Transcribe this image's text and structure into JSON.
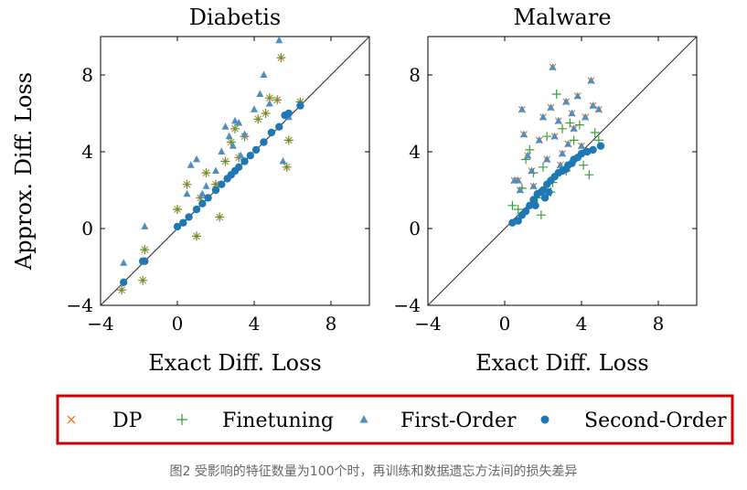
{
  "caption": "图2 受影响的特征数量为100个时，再训练和数据遗忘方法间的损失差异",
  "colors": {
    "dp": "#e8772e",
    "finetuning": "#3aa03a",
    "first_order": "#4f8fc0",
    "second_order": "#1f78b4",
    "frame": "#000000",
    "diagonal": "#333333",
    "legend_border": "#cc0000"
  },
  "legend": [
    {
      "key": "dp",
      "label": "DP",
      "marker": "x-mark"
    },
    {
      "key": "finetuning",
      "label": "Finetuning",
      "marker": "plus-mark"
    },
    {
      "key": "first_order",
      "label": "First-Order",
      "marker": "triangle-mark"
    },
    {
      "key": "second_order",
      "label": "Second-Order",
      "marker": "dot-mark"
    }
  ],
  "chart_data": [
    {
      "type": "scatter",
      "title": "Diabetis",
      "xlabel": "Exact Diff. Loss",
      "ylabel": "Approx. Diff. Loss",
      "xlim": [
        -4,
        10
      ],
      "ylim": [
        -4,
        10
      ],
      "xticks": [
        -4,
        0,
        4,
        8
      ],
      "yticks": [
        -4,
        0,
        4,
        8
      ],
      "xtick_labels": [
        "−4",
        "0",
        "4",
        "8"
      ],
      "ytick_labels": [
        "−4",
        "0",
        "4",
        "8"
      ],
      "diagonal": true,
      "series": [
        {
          "name": "DP",
          "key": "dp",
          "points": [
            [
              -2.9,
              -3.2
            ],
            [
              -1.8,
              -2.7
            ],
            [
              -1.7,
              -1.1
            ],
            [
              0,
              1.0
            ],
            [
              0.5,
              2.3
            ],
            [
              1.0,
              -0.4
            ],
            [
              1.2,
              1.6
            ],
            [
              1.5,
              2.9
            ],
            [
              2.0,
              2.3
            ],
            [
              2.2,
              0.6
            ],
            [
              2.5,
              3.5
            ],
            [
              2.8,
              4.5
            ],
            [
              3.0,
              5.2
            ],
            [
              3.2,
              3.7
            ],
            [
              3.5,
              4.8
            ],
            [
              4.2,
              5.7
            ],
            [
              4.6,
              6.0
            ],
            [
              4.8,
              6.8
            ],
            [
              5.2,
              6.7
            ],
            [
              5.4,
              8.9
            ],
            [
              5.8,
              4.6
            ],
            [
              5.7,
              3.2
            ],
            [
              6.4,
              6.6
            ]
          ]
        },
        {
          "name": "Finetuning",
          "key": "finetuning",
          "points": [
            [
              -2.9,
              -3.2
            ],
            [
              -1.8,
              -2.7
            ],
            [
              -1.7,
              -1.1
            ],
            [
              0,
              1.0
            ],
            [
              0.5,
              2.3
            ],
            [
              1.0,
              -0.4
            ],
            [
              1.2,
              1.6
            ],
            [
              1.5,
              2.9
            ],
            [
              2.0,
              2.3
            ],
            [
              2.2,
              0.6
            ],
            [
              2.5,
              3.5
            ],
            [
              2.8,
              4.5
            ],
            [
              3.0,
              5.2
            ],
            [
              3.2,
              3.7
            ],
            [
              3.5,
              4.8
            ],
            [
              4.2,
              5.7
            ],
            [
              4.6,
              6.0
            ],
            [
              4.8,
              6.8
            ],
            [
              5.2,
              6.7
            ],
            [
              5.4,
              8.9
            ],
            [
              5.8,
              4.6
            ],
            [
              5.7,
              3.2
            ],
            [
              6.4,
              6.6
            ]
          ]
        },
        {
          "name": "First-Order",
          "key": "first_order",
          "points": [
            [
              -2.8,
              -1.8
            ],
            [
              -1.7,
              0.1
            ],
            [
              0.5,
              1.8
            ],
            [
              0.7,
              3.3
            ],
            [
              1.0,
              3.6
            ],
            [
              1.5,
              2.2
            ],
            [
              2.0,
              3.0
            ],
            [
              2.3,
              4.0
            ],
            [
              2.5,
              5.3
            ],
            [
              2.7,
              4.8
            ],
            [
              3.0,
              5.6
            ],
            [
              3.2,
              5.5
            ],
            [
              3.5,
              4.9
            ],
            [
              4.0,
              6.2
            ],
            [
              4.3,
              7.0
            ],
            [
              4.5,
              8.0
            ],
            [
              4.8,
              6.5
            ],
            [
              5.3,
              9.8
            ],
            [
              5.5,
              3.5
            ],
            [
              5.8,
              5.8
            ],
            [
              3.3,
              3.8
            ],
            [
              2.9,
              4.3
            ],
            [
              1.3,
              1.8
            ]
          ]
        },
        {
          "name": "Second-Order",
          "key": "second_order",
          "points": [
            [
              -2.8,
              -2.8
            ],
            [
              -1.8,
              -1.7
            ],
            [
              -1.7,
              -1.7
            ],
            [
              0,
              0.1
            ],
            [
              0.3,
              0.3
            ],
            [
              0.6,
              0.6
            ],
            [
              1.0,
              1.0
            ],
            [
              1.3,
              1.3
            ],
            [
              1.6,
              1.6
            ],
            [
              2.0,
              2.0
            ],
            [
              2.3,
              2.3
            ],
            [
              2.6,
              2.6
            ],
            [
              2.8,
              2.8
            ],
            [
              3.0,
              3.0
            ],
            [
              3.2,
              3.2
            ],
            [
              3.5,
              3.5
            ],
            [
              3.8,
              3.8
            ],
            [
              4.1,
              4.1
            ],
            [
              4.5,
              4.5
            ],
            [
              4.9,
              5.0
            ],
            [
              5.3,
              5.3
            ],
            [
              5.6,
              5.9
            ],
            [
              5.8,
              6.0
            ],
            [
              6.4,
              6.4
            ]
          ]
        }
      ]
    },
    {
      "type": "scatter",
      "title": "Malware",
      "xlabel": "Exact Diff. Loss",
      "ylabel": "",
      "xlim": [
        -4,
        10
      ],
      "ylim": [
        -4,
        10
      ],
      "xticks": [
        -4,
        0,
        4,
        8
      ],
      "yticks": [
        -4,
        0,
        4,
        8
      ],
      "xtick_labels": [
        "−4",
        "0",
        "4",
        "8"
      ],
      "ytick_labels": [
        "−4",
        "0",
        "4",
        "8"
      ],
      "diagonal": true,
      "series": [
        {
          "name": "DP",
          "key": "dp",
          "points": [
            [
              0.5,
              2.5
            ],
            [
              0.8,
              2.0
            ],
            [
              0.9,
              6.2
            ],
            [
              1.0,
              4.9
            ],
            [
              1.2,
              3.8
            ],
            [
              1.4,
              3.0
            ],
            [
              1.5,
              2.2
            ],
            [
              1.8,
              4.6
            ],
            [
              2.0,
              5.8
            ],
            [
              2.2,
              3.6
            ],
            [
              2.4,
              6.3
            ],
            [
              2.5,
              8.4
            ],
            [
              2.6,
              4.8
            ],
            [
              2.8,
              5.6
            ],
            [
              3.0,
              3.9
            ],
            [
              3.2,
              6.6
            ],
            [
              3.3,
              4.4
            ],
            [
              3.5,
              6.0
            ],
            [
              3.6,
              5.2
            ],
            [
              3.8,
              6.9
            ],
            [
              4.0,
              4.3
            ],
            [
              4.2,
              5.8
            ],
            [
              4.5,
              7.7
            ],
            [
              4.6,
              6.4
            ],
            [
              4.9,
              6.2
            ],
            [
              0.7,
              2.5
            ],
            [
              2.9,
              3.3
            ]
          ]
        },
        {
          "name": "Finetuning",
          "key": "finetuning",
          "points": [
            [
              0.4,
              1.2
            ],
            [
              0.7,
              1.0
            ],
            [
              0.9,
              2.1
            ],
            [
              1.1,
              3.6
            ],
            [
              1.3,
              4.1
            ],
            [
              1.5,
              2.9
            ],
            [
              1.7,
              1.6
            ],
            [
              1.9,
              0.7
            ],
            [
              2.0,
              3.2
            ],
            [
              2.2,
              4.8
            ],
            [
              2.5,
              2.4
            ],
            [
              2.7,
              7.0
            ],
            [
              3.0,
              5.2
            ],
            [
              3.2,
              3.0
            ],
            [
              3.4,
              5.5
            ],
            [
              3.6,
              4.6
            ],
            [
              3.9,
              5.4
            ],
            [
              4.1,
              3.3
            ],
            [
              4.4,
              2.8
            ],
            [
              4.7,
              5.0
            ],
            [
              4.9,
              4.6
            ],
            [
              2.4,
              1.9
            ]
          ]
        },
        {
          "name": "First-Order",
          "key": "first_order",
          "points": [
            [
              0.5,
              2.5
            ],
            [
              0.8,
              2.0
            ],
            [
              0.9,
              6.2
            ],
            [
              1.0,
              4.9
            ],
            [
              1.2,
              3.8
            ],
            [
              1.4,
              3.0
            ],
            [
              1.5,
              2.2
            ],
            [
              1.8,
              4.6
            ],
            [
              2.0,
              5.8
            ],
            [
              2.2,
              3.6
            ],
            [
              2.4,
              6.3
            ],
            [
              2.5,
              8.4
            ],
            [
              2.6,
              4.8
            ],
            [
              2.8,
              5.6
            ],
            [
              3.0,
              3.9
            ],
            [
              3.2,
              6.6
            ],
            [
              3.3,
              4.4
            ],
            [
              3.5,
              6.0
            ],
            [
              3.6,
              5.2
            ],
            [
              3.8,
              6.9
            ],
            [
              4.0,
              4.3
            ],
            [
              4.2,
              5.8
            ],
            [
              4.5,
              7.7
            ],
            [
              4.6,
              6.4
            ],
            [
              4.9,
              6.2
            ],
            [
              0.7,
              2.5
            ],
            [
              2.9,
              3.3
            ]
          ]
        },
        {
          "name": "Second-Order",
          "key": "second_order",
          "points": [
            [
              0.4,
              0.3
            ],
            [
              0.7,
              0.4
            ],
            [
              0.9,
              0.7
            ],
            [
              1.1,
              0.9
            ],
            [
              1.3,
              1.2
            ],
            [
              1.5,
              1.5
            ],
            [
              1.7,
              1.8
            ],
            [
              1.9,
              1.9
            ],
            [
              2.0,
              2.0
            ],
            [
              2.2,
              2.3
            ],
            [
              2.3,
              1.9
            ],
            [
              2.4,
              2.5
            ],
            [
              2.6,
              2.7
            ],
            [
              2.8,
              2.9
            ],
            [
              3.0,
              3.0
            ],
            [
              3.2,
              3.1
            ],
            [
              3.3,
              3.3
            ],
            [
              3.5,
              3.4
            ],
            [
              3.6,
              3.6
            ],
            [
              3.8,
              3.7
            ],
            [
              4.0,
              3.9
            ],
            [
              4.3,
              4.0
            ],
            [
              4.6,
              4.1
            ],
            [
              5.0,
              4.3
            ],
            [
              2.1,
              1.6
            ],
            [
              1.6,
              1.2
            ]
          ]
        }
      ]
    }
  ]
}
